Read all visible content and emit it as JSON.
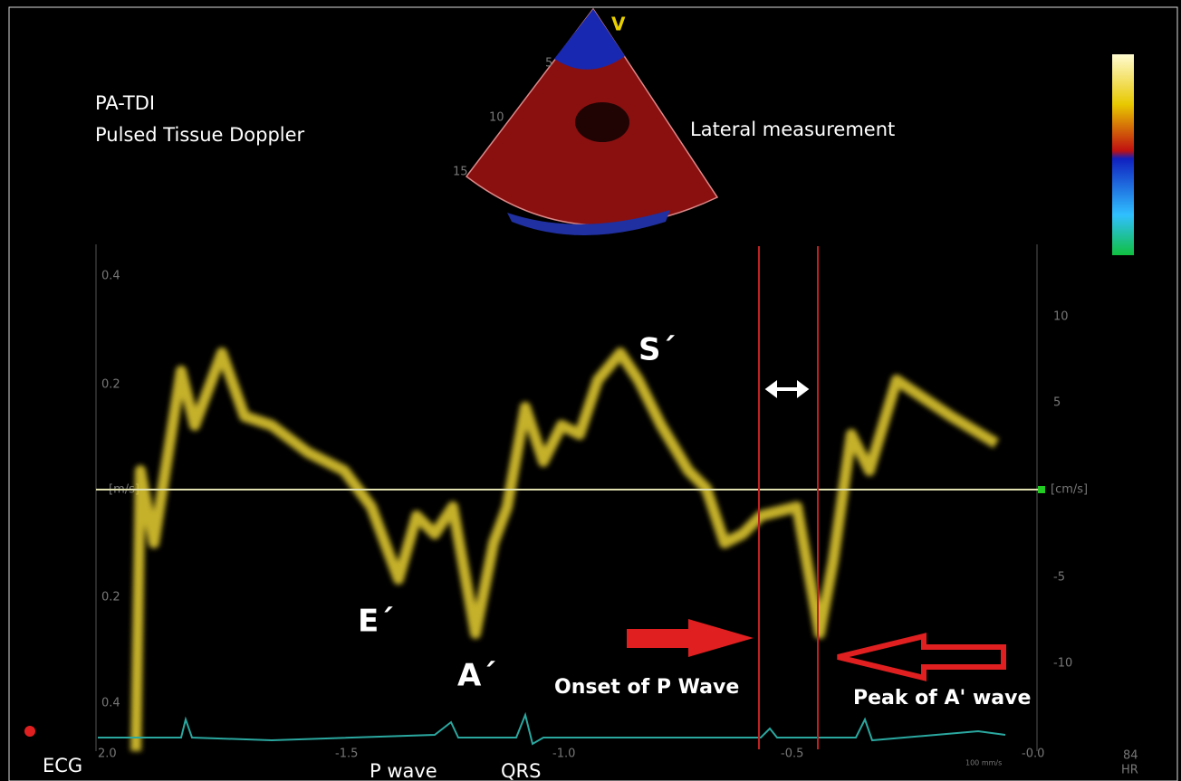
{
  "labels": {
    "mode": "PA-TDI",
    "method": "Pulsed Tissue Doppler",
    "view": "Lateral measurement",
    "probe": "V"
  },
  "annotations": {
    "s_wave": "S´",
    "e_wave": "E´",
    "a_wave": "A´",
    "onset": "Onset of P Wave",
    "peak": "Peak of A' wave",
    "ecg": "ECG",
    "p_wave": "P wave",
    "qrs": "QRS"
  },
  "left_axis": [
    "0.4",
    "0.2",
    "[m/s]",
    "0.2",
    "0.4"
  ],
  "right_axis": [
    "10",
    "5",
    "[cm/s]",
    "-5",
    "-10"
  ],
  "time_axis": [
    "2.0",
    "-1.5",
    "-1.0",
    "-0.5",
    "-0.0"
  ],
  "sweep": "100 mm/s",
  "heart_rate": {
    "value": "84",
    "unit": "HR"
  },
  "sector_depths": [
    "5",
    "10",
    "15"
  ]
}
